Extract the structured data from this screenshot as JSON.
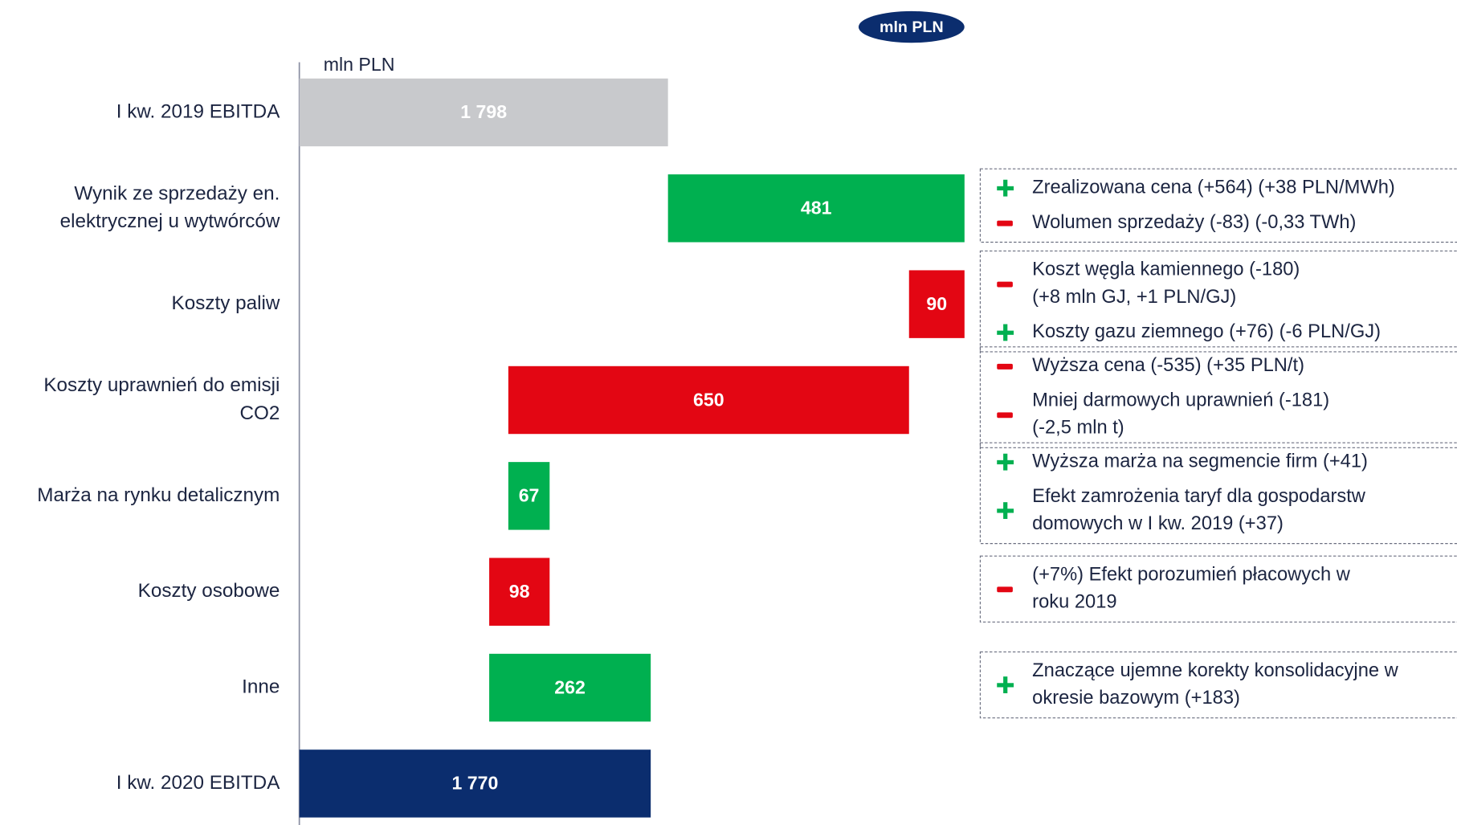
{
  "chart_data": {
    "type": "waterfall",
    "badge": "mln PLN",
    "unit_label": "mln PLN",
    "categories": [
      "I kw. 2019 EBITDA",
      [
        "Wynik ze sprzedaży en.",
        "elektrycznej u wytwórców"
      ],
      "Koszty paliw",
      [
        "Koszty uprawnień do emisji",
        "CO2"
      ],
      "Marża na rynku detalicznym",
      "Koszty osobowe",
      "Inne",
      "I kw. 2020 EBITDA"
    ],
    "values": [
      1798,
      481,
      -90,
      -650,
      67,
      -98,
      262,
      1770
    ],
    "value_labels": [
      "1 798",
      "481",
      "90",
      "650",
      "67",
      "98",
      "262",
      "1 770"
    ],
    "colors": [
      "#c8c9cc",
      "#00b050",
      "#e30613",
      "#e30613",
      "#00b050",
      "#e30613",
      "#00b050",
      "#0b2d6e"
    ],
    "xlim": [
      1200,
      2300
    ],
    "notes": [
      {
        "items": [
          {
            "sign": "plus",
            "lines": [
              "Zrealizowana cena (+564) (+38 PLN/MWh)"
            ]
          },
          {
            "sign": "minus",
            "lines": [
              "Wolumen sprzedaży (-83) (-0,33 TWh)"
            ]
          }
        ]
      },
      {
        "items": [
          {
            "sign": "minus",
            "lines": [
              "Koszt węgla kamiennego (-180)",
              "(+8 mln GJ, +1 PLN/GJ)"
            ]
          },
          {
            "sign": "plus",
            "lines": [
              "Koszty gazu ziemnego (+76) (-6 PLN/GJ)"
            ]
          }
        ]
      },
      {
        "items": [
          {
            "sign": "minus",
            "lines": [
              "Wyższa cena (-535) (+35 PLN/t)"
            ]
          },
          {
            "sign": "minus",
            "lines": [
              "Mniej darmowych uprawnień (-181)",
              "(-2,5 mln t)"
            ]
          }
        ]
      },
      {
        "items": [
          {
            "sign": "plus",
            "lines": [
              "Wyższa marża na segmencie firm (+41)"
            ]
          },
          {
            "sign": "plus",
            "lines": [
              "Efekt zamrożenia taryf dla gospodarstw",
              "domowych w I kw. 2019 (+37)"
            ]
          }
        ]
      },
      {
        "items": [
          {
            "sign": "minus",
            "lines": [
              "(+7%) Efekt porozumień płacowych w",
              "roku 2019"
            ]
          }
        ]
      },
      {
        "items": [
          {
            "sign": "plus",
            "lines": [
              "Znaczące ujemne korekty konsolidacyjne w",
              "okresie bazowym (+183)"
            ]
          }
        ]
      }
    ]
  }
}
